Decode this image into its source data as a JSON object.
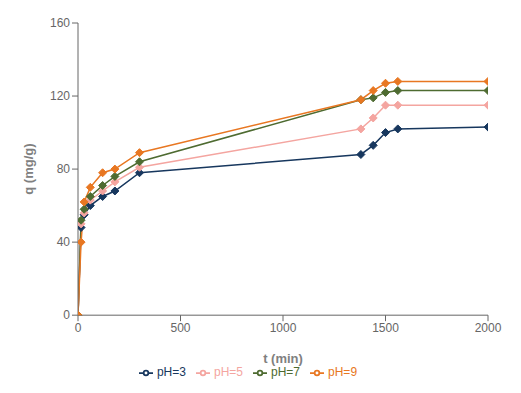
{
  "chart_data": {
    "type": "line",
    "xlabel": "t (min)",
    "ylabel": "q (mg/g)",
    "x": [
      0,
      15,
      30,
      60,
      120,
      180,
      300,
      1380,
      1440,
      1500,
      1560,
      2000
    ],
    "series": [
      {
        "name": "pH=3",
        "color": "#17375E",
        "marker": "diamond",
        "values": [
          0,
          48,
          55,
          60,
          65,
          68,
          78,
          88,
          93,
          100,
          102,
          103
        ]
      },
      {
        "name": "pH=5",
        "color": "#F4A5A0",
        "marker": "diamond",
        "values": [
          0,
          50,
          56,
          63,
          68,
          73,
          81,
          102,
          108,
          115,
          115,
          115
        ]
      },
      {
        "name": "pH=7",
        "color": "#4E6B31",
        "marker": "diamond",
        "values": [
          0,
          52,
          58,
          65,
          71,
          76,
          84,
          118,
          119,
          122,
          123,
          123
        ]
      },
      {
        "name": "pH=9",
        "color": "#E87722",
        "marker": "diamond",
        "values": [
          0,
          40,
          62,
          70,
          78,
          80,
          89,
          118,
          123,
          127,
          128,
          128
        ]
      }
    ],
    "xlim": [
      0,
      2000
    ],
    "ylim": [
      0,
      160
    ],
    "xticks": [
      0,
      500,
      1000,
      1500,
      2000
    ],
    "yticks": [
      0,
      40,
      80,
      120,
      160
    ],
    "grid": false,
    "legend": "bottom"
  }
}
